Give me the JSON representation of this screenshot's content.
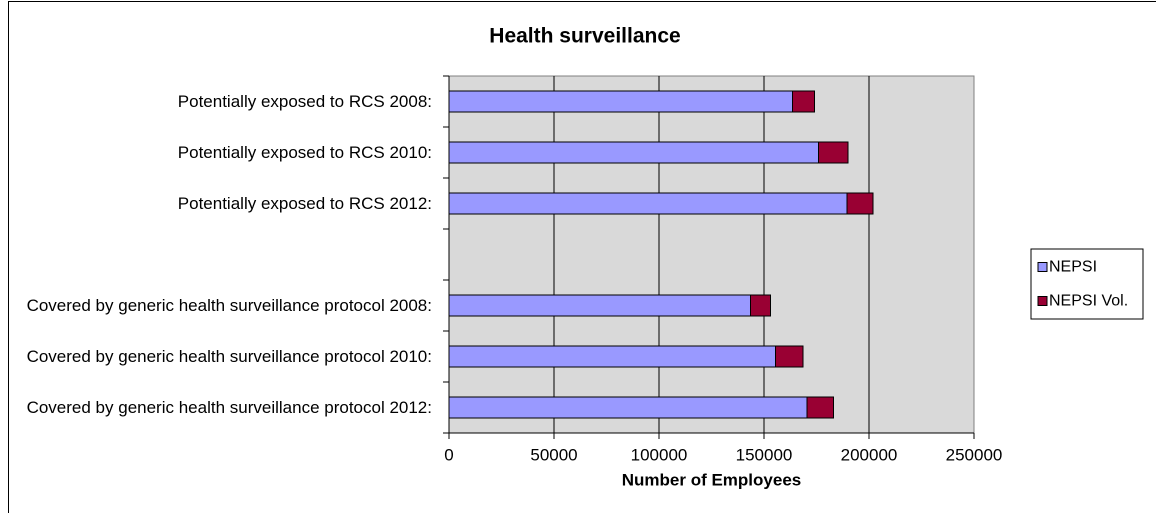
{
  "chart_data": {
    "type": "bar",
    "horizontal": true,
    "stacked": true,
    "title": "Health surveillance",
    "xlabel": "Number of Employees",
    "categories": [
      "Potentially exposed to RCS 2008:",
      "Potentially exposed to RCS 2010:",
      "Potentially exposed to RCS 2012:",
      "",
      "Covered by generic health surveillance protocol 2008:",
      "Covered by generic health surveillance protocol 2010:",
      "Covered by generic health surveillance protocol 2012:"
    ],
    "series": [
      {
        "name": "NEPSI",
        "color": "#9999FF",
        "values": [
          163500,
          176000,
          189500,
          null,
          143500,
          155500,
          170500
        ]
      },
      {
        "name": "NEPSI Vol.",
        "color": "#990033",
        "values": [
          10500,
          14000,
          12500,
          null,
          9500,
          13000,
          12500
        ]
      }
    ],
    "xlim": [
      0,
      250000
    ],
    "xticks": [
      0,
      50000,
      100000,
      150000,
      200000,
      250000
    ],
    "grid": true,
    "legend_position": "right",
    "plot_background": "#D9D9D9"
  }
}
